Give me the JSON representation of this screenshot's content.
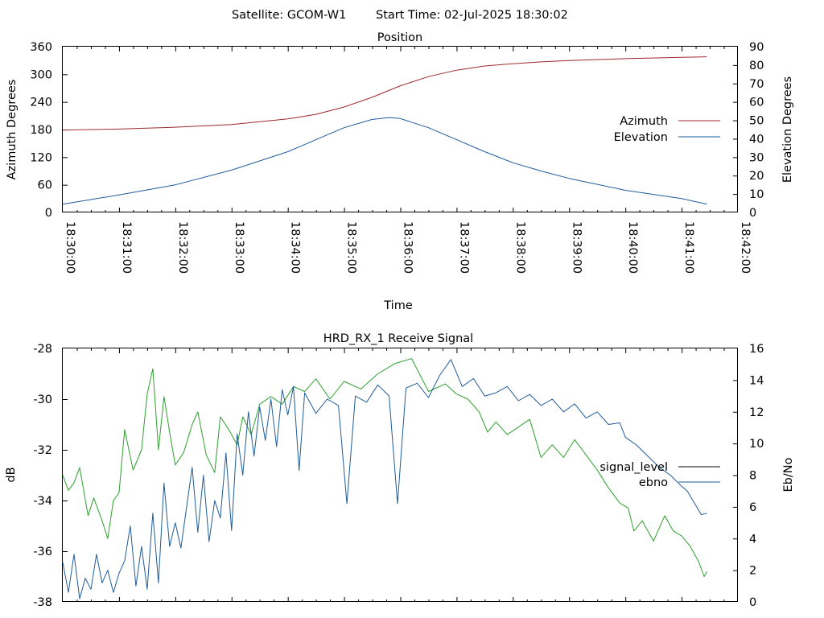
{
  "header": {
    "satellite_label": "Satellite: GCOM-W1",
    "start_time_label": "Start Time: 02-Jul-2025 18:30:02"
  },
  "chart_data": [
    {
      "type": "line",
      "title": "Position",
      "xlabel": "Time",
      "ylabel": "Azimuth Degrees",
      "y2label": "Elevation Degrees",
      "xlim_min": [
        0,
        12
      ],
      "x_tick_labels": [
        "18:30:00",
        "18:31:00",
        "18:32:00",
        "18:33:00",
        "18:34:00",
        "18:35:00",
        "18:36:00",
        "18:37:00",
        "18:38:00",
        "18:39:00",
        "18:40:00",
        "18:41:00",
        "18:42:00"
      ],
      "ylim": [
        0,
        360
      ],
      "y_ticks": [
        0,
        60,
        120,
        180,
        240,
        300,
        360
      ],
      "y2lim": [
        0,
        90
      ],
      "y2_ticks": [
        0,
        10,
        20,
        30,
        40,
        50,
        60,
        70,
        80,
        90
      ],
      "legend_position": "right",
      "series": [
        {
          "name": "Azimuth",
          "axis": "y",
          "color": "#a0282d",
          "points": [
            [
              0.0,
              179
            ],
            [
              1.0,
              181
            ],
            [
              2.0,
              185
            ],
            [
              3.0,
              191
            ],
            [
              4.0,
              203
            ],
            [
              4.5,
              213
            ],
            [
              5.0,
              229
            ],
            [
              5.5,
              250
            ],
            [
              6.0,
              275
            ],
            [
              6.5,
              295
            ],
            [
              7.0,
              309
            ],
            [
              7.5,
              318
            ],
            [
              8.0,
              323
            ],
            [
              8.5,
              327
            ],
            [
              9.0,
              330
            ],
            [
              10.0,
              334
            ],
            [
              11.0,
              337
            ],
            [
              11.45,
              338
            ]
          ]
        },
        {
          "name": "Elevation",
          "axis": "y2",
          "color": "#1f5b9a",
          "points": [
            [
              0.0,
              4.5
            ],
            [
              1.0,
              9.5
            ],
            [
              2.0,
              15
            ],
            [
              3.0,
              23
            ],
            [
              4.0,
              33
            ],
            [
              4.5,
              39.5
            ],
            [
              5.0,
              46
            ],
            [
              5.5,
              50.5
            ],
            [
              5.8,
              51.5
            ],
            [
              6.0,
              51
            ],
            [
              6.5,
              46
            ],
            [
              7.0,
              39.5
            ],
            [
              7.5,
              33
            ],
            [
              8.0,
              27
            ],
            [
              8.5,
              22.5
            ],
            [
              9.0,
              18.5
            ],
            [
              10.0,
              12
            ],
            [
              11.0,
              7.5
            ],
            [
              11.45,
              4.5
            ]
          ]
        }
      ]
    },
    {
      "type": "line",
      "title": "HRD_RX_1 Receive Signal",
      "xlabel": "",
      "ylabel": "dB",
      "y2label": "Eb/No",
      "xlim_min": [
        0,
        12
      ],
      "ylim": [
        -38,
        -28
      ],
      "y_ticks": [
        -38,
        -36,
        -34,
        -32,
        -30,
        -28
      ],
      "y2lim": [
        0,
        16
      ],
      "y2_ticks": [
        0,
        2,
        4,
        6,
        8,
        10,
        12,
        14,
        16
      ],
      "legend_position": "right",
      "series": [
        {
          "name": "signal_level",
          "axis": "y",
          "color": "#2ca02c",
          "legend_color": "#000000",
          "points": [
            [
              0.0,
              -33.0
            ],
            [
              0.1,
              -33.6
            ],
            [
              0.2,
              -33.3
            ],
            [
              0.3,
              -32.7
            ],
            [
              0.45,
              -34.6
            ],
            [
              0.55,
              -33.9
            ],
            [
              0.7,
              -34.8
            ],
            [
              0.8,
              -35.5
            ],
            [
              0.9,
              -34.0
            ],
            [
              1.0,
              -33.7
            ],
            [
              1.1,
              -31.2
            ],
            [
              1.25,
              -32.8
            ],
            [
              1.4,
              -32.0
            ],
            [
              1.5,
              -29.8
            ],
            [
              1.6,
              -28.8
            ],
            [
              1.7,
              -32.0
            ],
            [
              1.8,
              -29.9
            ],
            [
              1.9,
              -31.3
            ],
            [
              2.0,
              -32.6
            ],
            [
              2.15,
              -32.1
            ],
            [
              2.3,
              -31.0
            ],
            [
              2.4,
              -30.5
            ],
            [
              2.55,
              -32.2
            ],
            [
              2.7,
              -32.9
            ],
            [
              2.8,
              -30.7
            ],
            [
              2.95,
              -31.2
            ],
            [
              3.1,
              -31.8
            ],
            [
              3.2,
              -30.7
            ],
            [
              3.35,
              -31.4
            ],
            [
              3.5,
              -30.2
            ],
            [
              3.7,
              -29.9
            ],
            [
              3.9,
              -30.2
            ],
            [
              4.1,
              -29.5
            ],
            [
              4.3,
              -29.7
            ],
            [
              4.5,
              -29.2
            ],
            [
              4.75,
              -30.0
            ],
            [
              5.0,
              -29.3
            ],
            [
              5.3,
              -29.6
            ],
            [
              5.6,
              -29.0
            ],
            [
              5.9,
              -28.6
            ],
            [
              6.2,
              -28.4
            ],
            [
              6.5,
              -29.7
            ],
            [
              6.8,
              -29.4
            ],
            [
              7.0,
              -29.8
            ],
            [
              7.2,
              -30.0
            ],
            [
              7.4,
              -30.5
            ],
            [
              7.55,
              -31.3
            ],
            [
              7.7,
              -30.9
            ],
            [
              7.9,
              -31.4
            ],
            [
              8.1,
              -31.1
            ],
            [
              8.3,
              -30.8
            ],
            [
              8.5,
              -32.3
            ],
            [
              8.7,
              -31.8
            ],
            [
              8.9,
              -32.3
            ],
            [
              9.1,
              -31.6
            ],
            [
              9.3,
              -32.2
            ],
            [
              9.5,
              -32.8
            ],
            [
              9.7,
              -33.5
            ],
            [
              9.9,
              -34.1
            ],
            [
              10.05,
              -34.3
            ],
            [
              10.15,
              -35.2
            ],
            [
              10.3,
              -34.8
            ],
            [
              10.5,
              -35.6
            ],
            [
              10.7,
              -34.6
            ],
            [
              10.85,
              -35.2
            ],
            [
              11.0,
              -35.4
            ],
            [
              11.15,
              -35.8
            ],
            [
              11.3,
              -36.4
            ],
            [
              11.4,
              -37.0
            ],
            [
              11.45,
              -36.8
            ]
          ]
        },
        {
          "name": "ebno",
          "axis": "y2",
          "color": "#1f5b9a",
          "points": [
            [
              0.0,
              2.5
            ],
            [
              0.1,
              0.6
            ],
            [
              0.2,
              3.0
            ],
            [
              0.3,
              0.2
            ],
            [
              0.4,
              1.5
            ],
            [
              0.5,
              0.8
            ],
            [
              0.6,
              3.0
            ],
            [
              0.7,
              1.2
            ],
            [
              0.8,
              2.0
            ],
            [
              0.9,
              0.6
            ],
            [
              1.0,
              1.8
            ],
            [
              1.1,
              2.6
            ],
            [
              1.2,
              4.8
            ],
            [
              1.3,
              1.0
            ],
            [
              1.4,
              3.5
            ],
            [
              1.5,
              0.8
            ],
            [
              1.6,
              5.6
            ],
            [
              1.7,
              1.2
            ],
            [
              1.8,
              7.5
            ],
            [
              1.9,
              3.5
            ],
            [
              2.0,
              5.0
            ],
            [
              2.1,
              3.4
            ],
            [
              2.3,
              8.5
            ],
            [
              2.4,
              4.4
            ],
            [
              2.5,
              8.0
            ],
            [
              2.6,
              3.8
            ],
            [
              2.7,
              6.4
            ],
            [
              2.8,
              5.3
            ],
            [
              2.9,
              9.4
            ],
            [
              3.0,
              4.5
            ],
            [
              3.1,
              10.6
            ],
            [
              3.2,
              8.0
            ],
            [
              3.3,
              12.0
            ],
            [
              3.4,
              9.2
            ],
            [
              3.5,
              12.3
            ],
            [
              3.6,
              10.2
            ],
            [
              3.7,
              12.8
            ],
            [
              3.8,
              9.8
            ],
            [
              3.9,
              13.4
            ],
            [
              4.0,
              11.8
            ],
            [
              4.1,
              13.6
            ],
            [
              4.2,
              8.3
            ],
            [
              4.3,
              13.2
            ],
            [
              4.5,
              11.9
            ],
            [
              4.7,
              12.8
            ],
            [
              4.9,
              12.4
            ],
            [
              5.05,
              6.2
            ],
            [
              5.2,
              13.0
            ],
            [
              5.4,
              12.6
            ],
            [
              5.6,
              13.7
            ],
            [
              5.8,
              13.0
            ],
            [
              5.95,
              6.2
            ],
            [
              6.1,
              13.5
            ],
            [
              6.3,
              13.8
            ],
            [
              6.5,
              12.9
            ],
            [
              6.7,
              14.3
            ],
            [
              6.9,
              15.3
            ],
            [
              7.1,
              13.6
            ],
            [
              7.3,
              14.1
            ],
            [
              7.5,
              13.0
            ],
            [
              7.7,
              13.2
            ],
            [
              7.9,
              13.6
            ],
            [
              8.1,
              12.7
            ],
            [
              8.3,
              13.1
            ],
            [
              8.5,
              12.4
            ],
            [
              8.7,
              12.8
            ],
            [
              8.9,
              12.0
            ],
            [
              9.1,
              12.5
            ],
            [
              9.3,
              11.6
            ],
            [
              9.5,
              12.0
            ],
            [
              9.7,
              11.2
            ],
            [
              9.9,
              11.3
            ],
            [
              10.0,
              10.4
            ],
            [
              10.2,
              9.9
            ],
            [
              10.4,
              9.2
            ],
            [
              10.6,
              8.5
            ],
            [
              10.8,
              8.0
            ],
            [
              11.0,
              7.3
            ],
            [
              11.1,
              7.0
            ],
            [
              11.25,
              6.1
            ],
            [
              11.35,
              5.5
            ],
            [
              11.45,
              5.6
            ]
          ]
        }
      ]
    }
  ]
}
